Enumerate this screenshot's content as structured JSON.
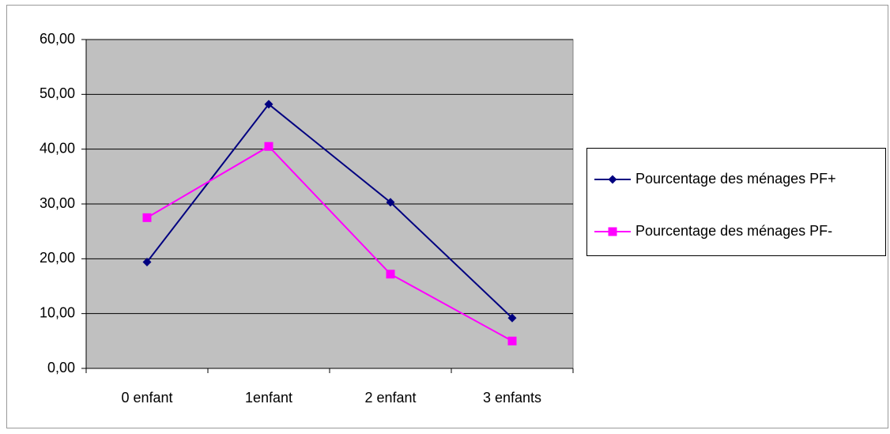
{
  "chart_data": {
    "type": "line",
    "categories": [
      "0 enfant",
      "1enfant",
      "2 enfant",
      "3 enfants"
    ],
    "series": [
      {
        "name": "Pourcentage des ménages PF+",
        "color": "#000080",
        "marker": "diamond",
        "values": [
          19.4,
          48.2,
          30.3,
          9.2
        ]
      },
      {
        "name": "Pourcentage des ménages PF-",
        "color": "#ff00ff",
        "marker": "square",
        "values": [
          27.5,
          40.5,
          17.2,
          5.0
        ]
      }
    ],
    "ylim": [
      0,
      60
    ],
    "yticks": [
      {
        "value": 0,
        "label": "0,00"
      },
      {
        "value": 10,
        "label": "10,00"
      },
      {
        "value": 20,
        "label": "20,00"
      },
      {
        "value": 30,
        "label": "30,00"
      },
      {
        "value": 40,
        "label": "40,00"
      },
      {
        "value": 50,
        "label": "50,00"
      },
      {
        "value": 60,
        "label": "60,00"
      }
    ],
    "grid": true,
    "legend": "right",
    "plot_background": "#c0c0c0"
  }
}
